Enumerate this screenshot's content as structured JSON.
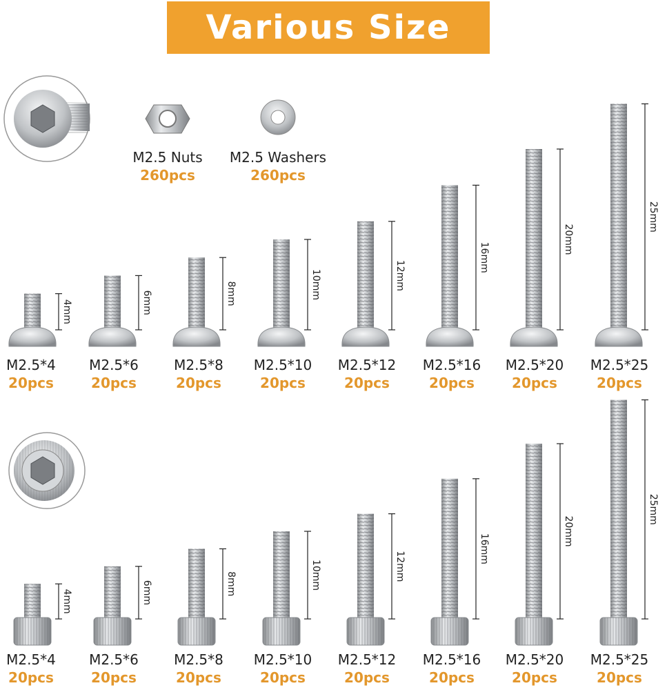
{
  "header": {
    "title": "Various Size"
  },
  "extras": [
    {
      "label": "M2.5 Nuts",
      "qty": "260pcs"
    },
    {
      "label": "M2.5 Washers",
      "qty": "260pcs"
    }
  ],
  "rows": [
    {
      "items": [
        {
          "label": "M2.5*4",
          "qty": "20pcs",
          "length": "4mm"
        },
        {
          "label": "M2.5*6",
          "qty": "20pcs",
          "length": "6mm"
        },
        {
          "label": "M2.5*8",
          "qty": "20pcs",
          "length": "8mm"
        },
        {
          "label": "M2.5*10",
          "qty": "20pcs",
          "length": "10mm"
        },
        {
          "label": "M2.5*12",
          "qty": "20pcs",
          "length": "12mm"
        },
        {
          "label": "M2.5*16",
          "qty": "20pcs",
          "length": "16mm"
        },
        {
          "label": "M2.5*20",
          "qty": "20pcs",
          "length": "20mm"
        },
        {
          "label": "M2.5*25",
          "qty": "20pcs",
          "length": "25mm"
        }
      ]
    },
    {
      "items": [
        {
          "label": "M2.5*4",
          "qty": "20pcs",
          "length": "4mm"
        },
        {
          "label": "M2.5*6",
          "qty": "20pcs",
          "length": "6mm"
        },
        {
          "label": "M2.5*8",
          "qty": "20pcs",
          "length": "8mm"
        },
        {
          "label": "M2.5*10",
          "qty": "20pcs",
          "length": "10mm"
        },
        {
          "label": "M2.5*12",
          "qty": "20pcs",
          "length": "12mm"
        },
        {
          "label": "M2.5*16",
          "qty": "20pcs",
          "length": "16mm"
        },
        {
          "label": "M2.5*20",
          "qty": "20pcs",
          "length": "20mm"
        },
        {
          "label": "M2.5*25",
          "qty": "20pcs",
          "length": "25mm"
        }
      ]
    }
  ]
}
